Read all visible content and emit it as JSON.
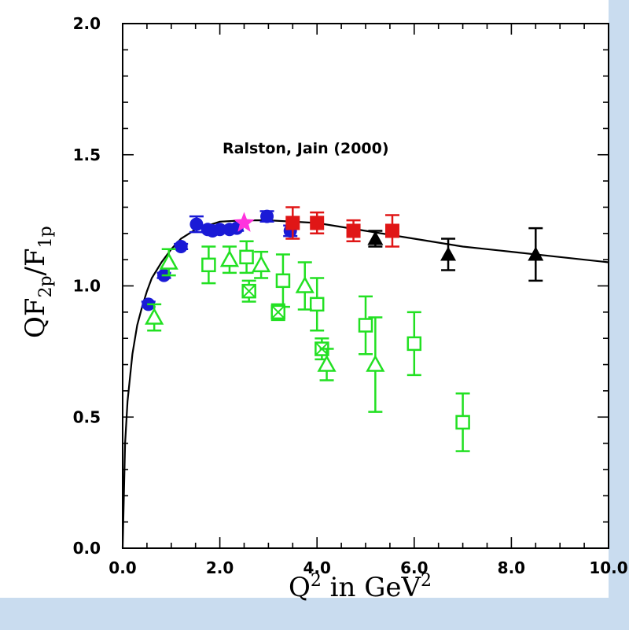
{
  "chart_data": {
    "type": "scatter",
    "xlim": [
      0,
      10
    ],
    "ylim": [
      0,
      2
    ],
    "xticks": [
      "0.0",
      "2.0",
      "4.0",
      "6.0",
      "8.0",
      "10.0"
    ],
    "yticks": [
      "0.0",
      "0.5",
      "1.0",
      "1.5",
      "2.0"
    ],
    "xlabel": {
      "main": "Q",
      "sup1": "2",
      "mid": " in GeV",
      "sup2": "2"
    },
    "ylabel": {
      "a": "QF",
      "sub1": "2p",
      "slash": "/",
      "b": "F",
      "sub2": "1p"
    },
    "annotation": "Ralston, Jain (2000)",
    "grid": false,
    "colors": {
      "blue": "#1a1ad6",
      "red": "#e01616",
      "green": "#22e022",
      "black": "#000000",
      "magenta": "#ff33dd"
    },
    "series": [
      {
        "marker": "circle",
        "color": "blue",
        "points": [
          {
            "x": 0.53,
            "y": 0.93,
            "e": 0.01
          },
          {
            "x": 0.85,
            "y": 1.04,
            "e": 0.01
          },
          {
            "x": 1.2,
            "y": 1.15,
            "e": 0.01
          },
          {
            "x": 1.52,
            "y": 1.235,
            "e": 0.03
          },
          {
            "x": 1.75,
            "y": 1.215,
            "e": 0.01
          },
          {
            "x": 1.85,
            "y": 1.21,
            "e": 0.01
          },
          {
            "x": 2.0,
            "y": 1.215,
            "e": 0.01
          },
          {
            "x": 2.2,
            "y": 1.215,
            "e": 0.01
          },
          {
            "x": 2.35,
            "y": 1.22,
            "e": 0.01
          },
          {
            "x": 2.97,
            "y": 1.265,
            "e": 0.02
          },
          {
            "x": 3.45,
            "y": 1.21,
            "e": 0.02
          }
        ]
      },
      {
        "marker": "star",
        "color": "magenta",
        "points": [
          {
            "x": 2.5,
            "y": 1.24,
            "e": 0
          }
        ]
      },
      {
        "marker": "square-filled",
        "color": "red",
        "points": [
          {
            "x": 3.5,
            "y": 1.24,
            "e": 0.06
          },
          {
            "x": 4.0,
            "y": 1.24,
            "e": 0.04
          },
          {
            "x": 4.75,
            "y": 1.21,
            "e": 0.04
          },
          {
            "x": 5.55,
            "y": 1.21,
            "e": 0.06
          }
        ]
      },
      {
        "marker": "triangle-filled",
        "color": "black",
        "points": [
          {
            "x": 5.2,
            "y": 1.18,
            "e": 0.03
          },
          {
            "x": 6.7,
            "y": 1.12,
            "e": 0.06
          },
          {
            "x": 8.5,
            "y": 1.12,
            "e": 0.1
          }
        ]
      },
      {
        "marker": "square-open",
        "color": "green",
        "points": [
          {
            "x": 1.77,
            "y": 1.08,
            "e": 0.07
          },
          {
            "x": 2.55,
            "y": 1.11,
            "e": 0.06
          },
          {
            "x": 3.3,
            "y": 1.02,
            "e": 0.1
          },
          {
            "x": 4.0,
            "y": 0.93,
            "e": 0.1
          },
          {
            "x": 5.0,
            "y": 0.85,
            "e": 0.11
          },
          {
            "x": 6.0,
            "y": 0.78,
            "e": 0.12
          },
          {
            "x": 7.0,
            "y": 0.48,
            "e": 0.11
          }
        ]
      },
      {
        "marker": "square-crossed",
        "color": "green",
        "points": [
          {
            "x": 2.6,
            "y": 0.98,
            "e": 0.04
          },
          {
            "x": 3.2,
            "y": 0.9,
            "e": 0.03
          },
          {
            "x": 4.1,
            "y": 0.76,
            "e": 0.04
          }
        ]
      },
      {
        "marker": "triangle-open",
        "color": "green",
        "points": [
          {
            "x": 0.65,
            "y": 0.88,
            "e": 0.05
          },
          {
            "x": 0.95,
            "y": 1.09,
            "e": 0.05
          },
          {
            "x": 2.2,
            "y": 1.1,
            "e": 0.05
          },
          {
            "x": 2.85,
            "y": 1.08,
            "e": 0.05
          },
          {
            "x": 3.75,
            "y": 1.0,
            "e": 0.09
          },
          {
            "x": 4.2,
            "y": 0.7,
            "e": 0.06
          },
          {
            "x": 5.2,
            "y": 0.7,
            "e": 0.18
          }
        ]
      }
    ],
    "curve": {
      "type": "line",
      "color": "black",
      "points": [
        [
          0,
          0
        ],
        [
          0.05,
          0.4
        ],
        [
          0.1,
          0.56
        ],
        [
          0.2,
          0.74
        ],
        [
          0.3,
          0.85
        ],
        [
          0.4,
          0.92
        ],
        [
          0.5,
          0.98
        ],
        [
          0.6,
          1.03
        ],
        [
          0.8,
          1.09
        ],
        [
          1.0,
          1.14
        ],
        [
          1.2,
          1.18
        ],
        [
          1.5,
          1.215
        ],
        [
          2.0,
          1.245
        ],
        [
          2.5,
          1.25
        ],
        [
          3.0,
          1.25
        ],
        [
          4.0,
          1.24
        ],
        [
          5.0,
          1.21
        ],
        [
          6.0,
          1.18
        ],
        [
          7.0,
          1.15
        ],
        [
          8.0,
          1.13
        ],
        [
          9.0,
          1.11
        ],
        [
          10.0,
          1.09
        ]
      ]
    }
  }
}
